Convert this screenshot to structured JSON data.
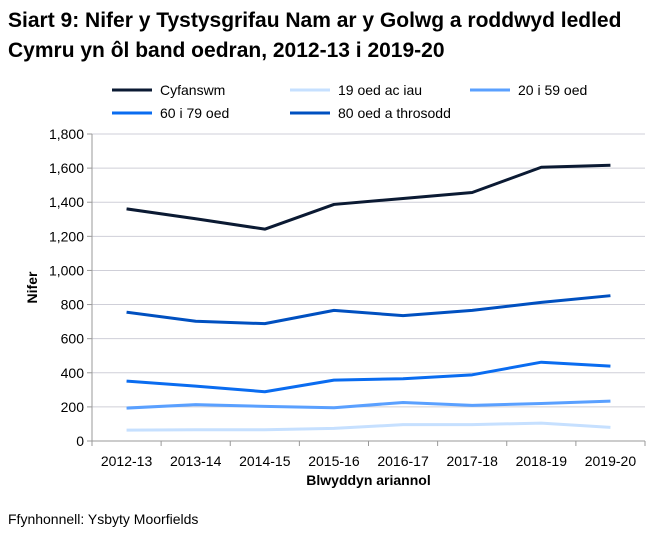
{
  "chart_data": {
    "type": "line",
    "title": "Siart 9: Nifer y Tystysgrifau Nam ar y Golwg a roddwyd ledled Cymru yn ôl band oedran, 2012-13 i 2019-20",
    "xlabel": "Blwyddyn ariannol",
    "ylabel": "Nifer",
    "ylim": [
      0,
      1800
    ],
    "yticks": [
      "0",
      "200",
      "400",
      "600",
      "800",
      "1,000",
      "1,200",
      "1,400",
      "1,600",
      "1,800"
    ],
    "grid": true,
    "legend": "top",
    "categories": [
      "2012-13",
      "2013-14",
      "2014-15",
      "2015-16",
      "2016-17",
      "2017-18",
      "2018-19",
      "2019-20"
    ],
    "series": [
      {
        "name": "Cyfanswm",
        "color": "#0b1a33",
        "values": [
          1361,
          1303,
          1242,
          1387,
          1422,
          1457,
          1605,
          1617
        ]
      },
      {
        "name": "19 oed ac iau",
        "color": "#c6e0ff",
        "values": [
          64,
          66,
          66,
          74,
          96,
          96,
          105,
          80
        ]
      },
      {
        "name": "20 i 59 oed",
        "color": "#5aa0ff",
        "values": [
          193,
          213,
          203,
          195,
          226,
          209,
          220,
          234
        ]
      },
      {
        "name": "60 i 79 oed",
        "color": "#0a6cf0",
        "values": [
          351,
          322,
          289,
          357,
          365,
          388,
          462,
          439
        ]
      },
      {
        "name": "80 oed a throsodd",
        "color": "#0050c0",
        "values": [
          755,
          702,
          688,
          766,
          735,
          766,
          813,
          852
        ]
      }
    ]
  },
  "source": "Ffynhonnell: Ysbyty Moorfields"
}
